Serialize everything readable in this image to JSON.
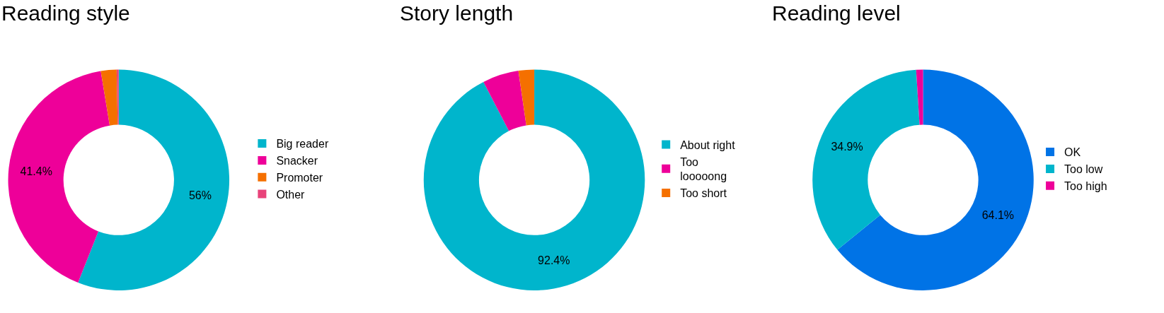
{
  "chart_data": [
    {
      "type": "donut",
      "title": "Reading style",
      "categories": [
        "Big reader",
        "Snacker",
        "Promoter",
        "Other"
      ],
      "values": [
        56,
        41.4,
        2.3,
        0.3
      ],
      "colors": [
        "#00b5cc",
        "#ee0099",
        "#f57000",
        "#e8437a"
      ],
      "value_labels": [
        "56%",
        "41.4%",
        null,
        null
      ],
      "legend": "right"
    },
    {
      "type": "donut",
      "title": "Story length",
      "categories": [
        "About right",
        "Too looooong",
        "Too short"
      ],
      "values": [
        92.4,
        5.3,
        2.3
      ],
      "colors": [
        "#00b5cc",
        "#ee0099",
        "#f57000"
      ],
      "value_labels": [
        "92.4%",
        null,
        null
      ],
      "legend": "right"
    },
    {
      "type": "donut",
      "title": "Reading level",
      "categories": [
        "OK",
        "Too low",
        "Too high"
      ],
      "values": [
        64.1,
        34.9,
        1.0
      ],
      "colors": [
        "#0073e6",
        "#00b5cc",
        "#ee0099"
      ],
      "value_labels": [
        "64.1%",
        "34.9%",
        null
      ],
      "legend": "right"
    }
  ]
}
